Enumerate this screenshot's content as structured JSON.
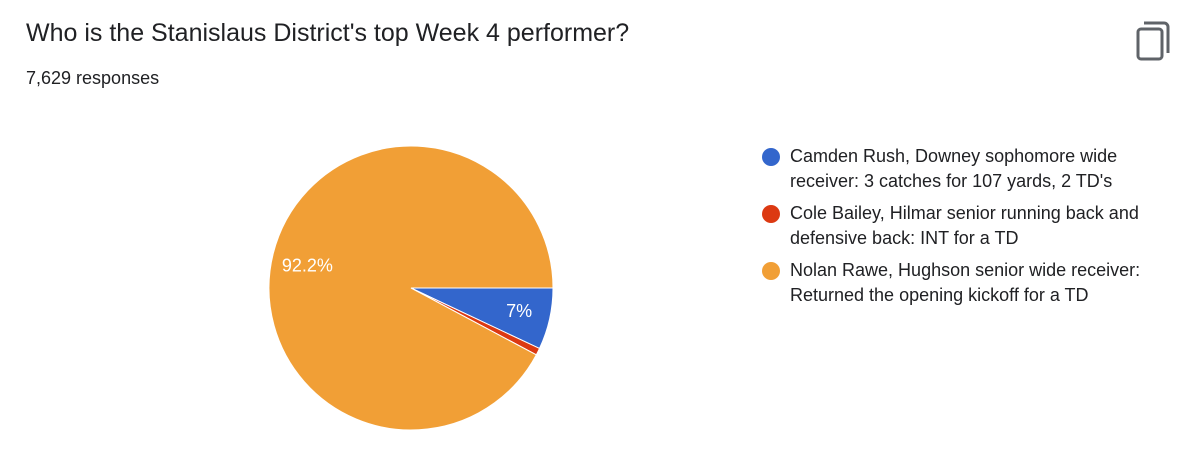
{
  "header": {
    "title": "Who is the Stanislaus District's top Week 4 performer?",
    "responses": "7,629 responses",
    "copy_icon": "copy-icon"
  },
  "chart_data": {
    "type": "pie",
    "title": "Who is the Stanislaus District's top Week 4 performer?",
    "total_responses": 7629,
    "legend_position": "right",
    "slices": [
      {
        "label": "Camden Rush, Downey sophomore wide receiver: 3 catches for 107 yards, 2 TD's",
        "value": 7.0,
        "display": "7%",
        "color": "#3366cc"
      },
      {
        "label": "Cole Bailey, Hilmar senior running back and defensive back: INT for a TD",
        "value": 0.8,
        "display": "",
        "color": "#dc3912"
      },
      {
        "label": "Nolan Rawe, Hughson senior wide receiver: Returned the opening kickoff for a TD",
        "value": 92.2,
        "display": "92.2%",
        "color": "#f19f36"
      }
    ]
  }
}
